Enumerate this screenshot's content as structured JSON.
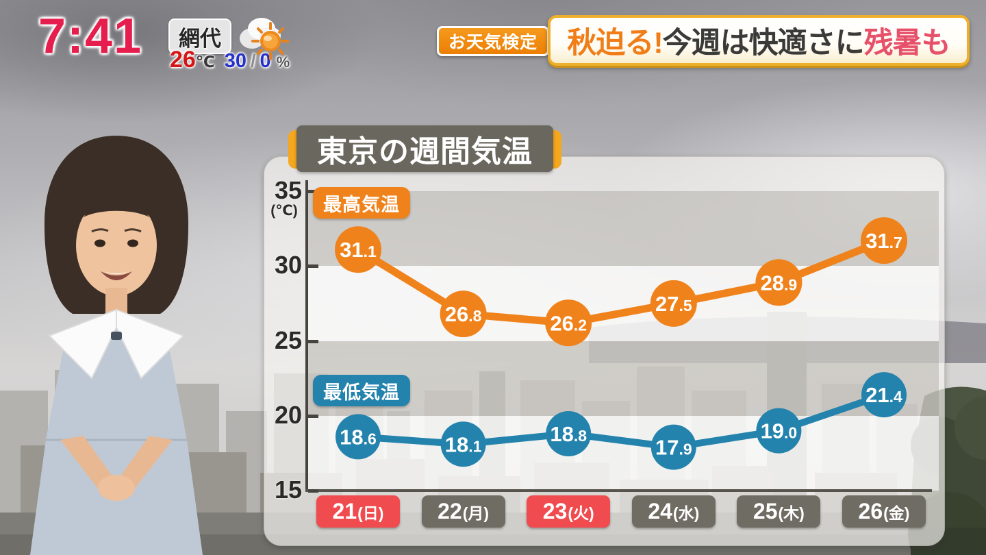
{
  "clock": {
    "time": "7:41"
  },
  "station": {
    "location": "網代",
    "temperature": "26",
    "temperature_unit": "℃",
    "precip_am": "30",
    "precip_separator": "/",
    "precip_pm": "0",
    "precip_unit": "%",
    "weather_icon": "sun-behind-cloud"
  },
  "header": {
    "badge": "お天気検定",
    "headline_1": "秋迫る!",
    "headline_2": "今週は快適さに",
    "headline_3": "残暑も"
  },
  "colors": {
    "clock": "#e51e4d",
    "badge_bg": "#ec7f04",
    "headline_accent": "#f07d18",
    "headline_alert": "#e75069",
    "title_bg": "#6a675e",
    "title_trim": "#f5a71d",
    "max_series": "#f0821b",
    "min_series": "#2483ad",
    "holiday_box": "#f04b4f",
    "weekday_box": "#6f6c63"
  },
  "chart_data": {
    "type": "line",
    "title": "東京の週間気温",
    "unit_label": "(℃)",
    "categories": [
      "21(日)",
      "22(月)",
      "23(火)",
      "24(水)",
      "25(木)",
      "26(金)"
    ],
    "category_is_holiday": [
      true,
      false,
      true,
      false,
      false,
      false
    ],
    "series": [
      {
        "name": "最高気温",
        "color": "#f0821b",
        "values": [
          31.1,
          26.8,
          26.2,
          27.5,
          28.9,
          31.7
        ]
      },
      {
        "name": "最低気温",
        "color": "#2483ad",
        "values": [
          18.6,
          18.1,
          18.8,
          17.9,
          19.0,
          21.4
        ]
      }
    ],
    "ylim": [
      15,
      35
    ],
    "yticks": [
      35,
      30,
      25,
      20,
      15
    ],
    "value_decimals": 1,
    "grid": "banded-5-degree",
    "legend_position": "inside-left",
    "day_colors": {
      "holiday": "#f04b4f",
      "normal": "#6f6c63"
    }
  }
}
